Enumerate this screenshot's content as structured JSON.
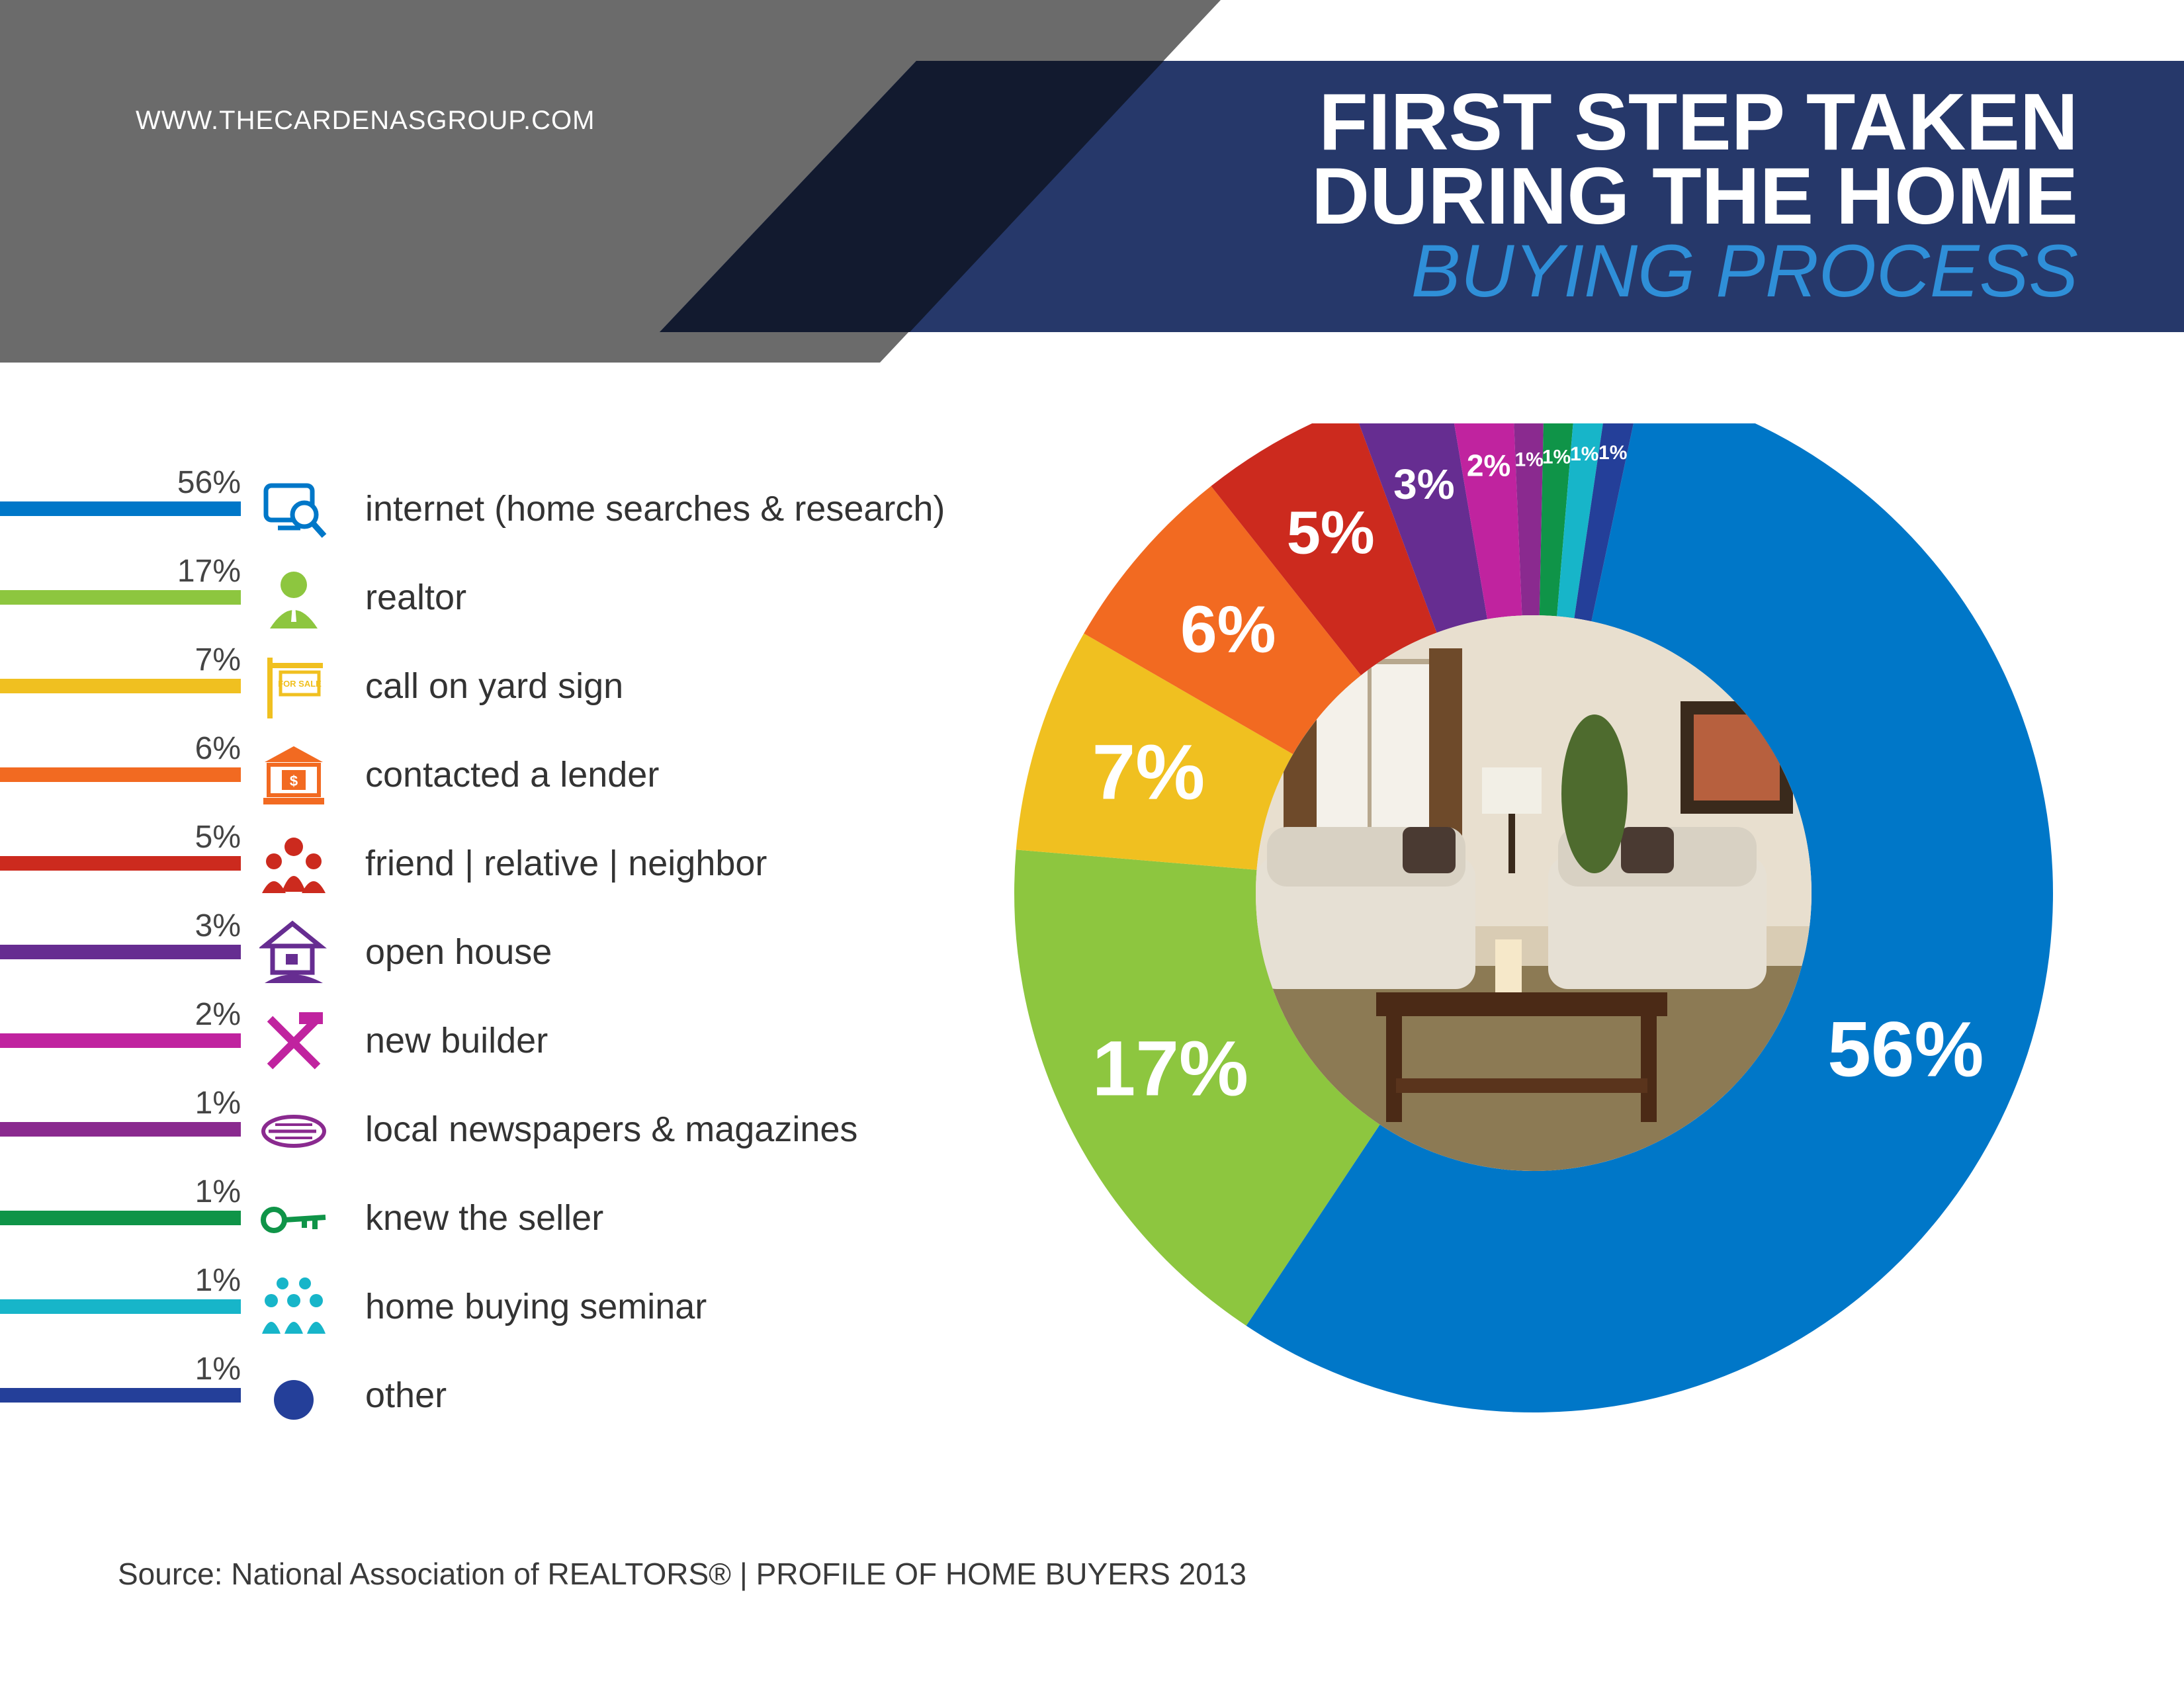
{
  "header": {
    "website": "WWW.THECARDENASGROUP.COM",
    "title_line1": "FIRST STEP TAKEN",
    "title_line2": "DURING THE HOME",
    "subtitle": "BUYING PROCESS"
  },
  "colors": {
    "banner_gray": "#6b6b6b",
    "banner_navy": "#26386a",
    "banner_dark": "#121a2f",
    "subtitle_blue": "#2f8fd8"
  },
  "chart_data": {
    "type": "pie",
    "donut": true,
    "center_image": "living-room-photo",
    "categories": [
      "internet (home searches & research)",
      "realtor",
      "call on yard sign",
      "contacted a lender",
      "friend | relative | neighbor",
      "open house",
      "new builder",
      "local newspapers & magazines",
      "knew the seller",
      "home buying seminar",
      "other"
    ],
    "values": [
      56,
      17,
      7,
      6,
      5,
      3,
      2,
      1,
      1,
      1,
      1
    ],
    "slice_labels": [
      "56%",
      "17%",
      "7%",
      "6%",
      "5%",
      "3%",
      "2%",
      "1%",
      "1%",
      "1%",
      "1%"
    ],
    "colors": [
      "#0077c8",
      "#8dc63f",
      "#f0c020",
      "#f26a21",
      "#cc2a1e",
      "#662d91",
      "#c0239f",
      "#8a2a8f",
      "#0f9448",
      "#17b5c9",
      "#243f99"
    ],
    "icons": [
      "computer-search-icon",
      "person-icon",
      "for-sale-sign-icon",
      "bank-icon",
      "group-icon",
      "house-icon",
      "tools-icon",
      "newspaper-icon",
      "key-icon",
      "seminar-icon",
      "dot-icon"
    ]
  },
  "source": "Source: National Association of REALTORS®  |  PROFILE OF HOME BUYERS 2013"
}
